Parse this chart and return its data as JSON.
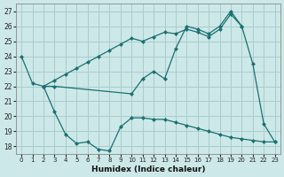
{
  "xlabel": "Humidex (Indice chaleur)",
  "bg_color": "#cde8e8",
  "grid_color": "#aacccc",
  "line_color": "#1a7070",
  "xlim": [
    -0.5,
    23.5
  ],
  "ylim": [
    17.5,
    27.5
  ],
  "yticks": [
    18,
    19,
    20,
    21,
    22,
    23,
    24,
    25,
    26,
    27
  ],
  "xticks": [
    0,
    1,
    2,
    3,
    4,
    5,
    6,
    7,
    8,
    9,
    10,
    11,
    12,
    13,
    14,
    15,
    16,
    17,
    18,
    19,
    20,
    21,
    22,
    23
  ],
  "line1_x": [
    0,
    1,
    2,
    3,
    10,
    11,
    12,
    13,
    14,
    15,
    16,
    17,
    18,
    19,
    20,
    21,
    22,
    23
  ],
  "line1_y": [
    24,
    22.2,
    22,
    22,
    21.5,
    22.5,
    23.0,
    22.5,
    24.5,
    26.0,
    25.8,
    25.5,
    26.0,
    27.0,
    26.0,
    23.5,
    19.5,
    18.3
  ],
  "line2_x": [
    2,
    3,
    4,
    5,
    6,
    7,
    8,
    9,
    10,
    11,
    12,
    13,
    14,
    15,
    16,
    17,
    18,
    19,
    20
  ],
  "line2_y": [
    22,
    22.4,
    22.8,
    23.2,
    23.6,
    24.0,
    24.4,
    24.8,
    25.2,
    25.0,
    25.3,
    25.6,
    25.5,
    25.8,
    25.6,
    25.3,
    25.8,
    26.8,
    26.0
  ],
  "line3_x": [
    2,
    3,
    4,
    5,
    6,
    7,
    8,
    9,
    10,
    11,
    12,
    13,
    14,
    15,
    16,
    17,
    18,
    19,
    20,
    21,
    22,
    23
  ],
  "line3_y": [
    22,
    20.3,
    18.8,
    18.2,
    18.3,
    17.8,
    17.7,
    19.3,
    19.9,
    19.9,
    19.8,
    19.8,
    19.6,
    19.4,
    19.2,
    19.0,
    18.8,
    18.6,
    18.5,
    18.4,
    18.3,
    18.3
  ]
}
